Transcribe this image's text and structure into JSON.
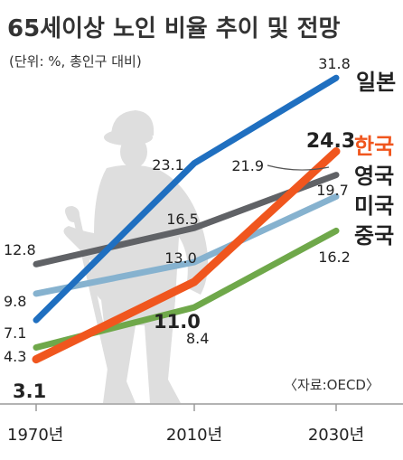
{
  "chart_data": {
    "type": "line",
    "title": "65세이상 노인 비율 추이 및 전망",
    "subtitle": "(단위: %, 총인구 대비)",
    "source": "〈자료:OECD〉",
    "categories": [
      "1970년",
      "2010년",
      "2030년"
    ],
    "ylim": [
      0,
      34
    ],
    "series": [
      {
        "name": "일본",
        "values": [
          7.1,
          23.1,
          31.8
        ],
        "color": "#1f6fc0",
        "value_labels": [
          "7.1",
          "23.1",
          "31.8"
        ]
      },
      {
        "name": "한국",
        "values": [
          3.1,
          11.0,
          24.3
        ],
        "color": "#f0561e",
        "value_labels": [
          "3.1",
          "11.0",
          "24.3"
        ]
      },
      {
        "name": "영국",
        "values": [
          12.8,
          16.5,
          21.9
        ],
        "color": "#606266",
        "value_labels": [
          "12.8",
          "16.5",
          "21.9"
        ]
      },
      {
        "name": "미국",
        "values": [
          9.8,
          13.0,
          19.7
        ],
        "color": "#86b2cf",
        "value_labels": [
          "9.8",
          "13.0",
          "19.7"
        ]
      },
      {
        "name": "중국",
        "values": [
          4.3,
          8.4,
          16.2
        ],
        "color": "#6fa84a",
        "value_labels": [
          "4.3",
          "8.4",
          "16.2"
        ]
      }
    ]
  }
}
